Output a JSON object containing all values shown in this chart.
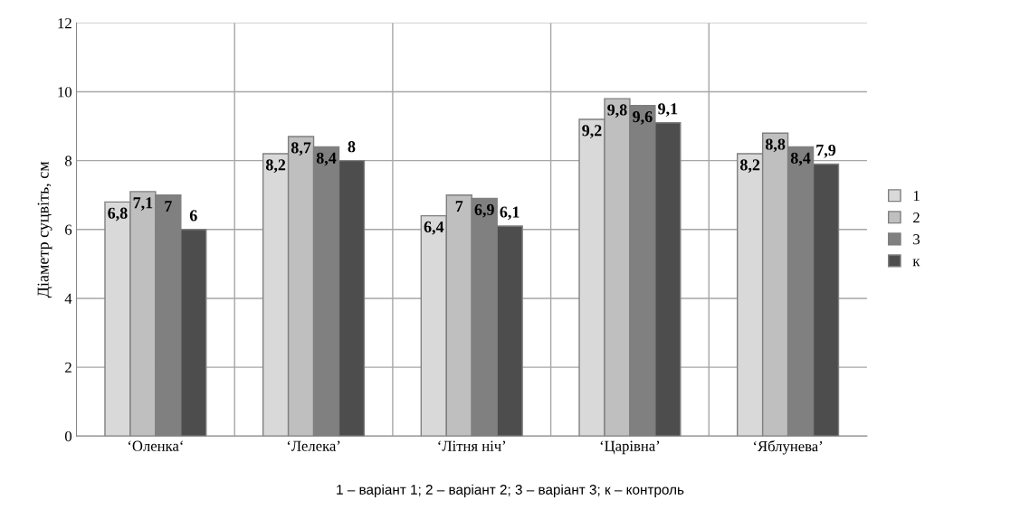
{
  "chart_data": {
    "type": "bar",
    "ylabel": "Діаметр суцвіть, см",
    "categories": [
      "‘Оленка‘",
      "‘Лелека’",
      "‘Літня ніч’",
      "‘Царівна’",
      "‘Яблунева’"
    ],
    "series": [
      {
        "name": "1",
        "color": "#d9d9d9",
        "values": [
          6.8,
          8.2,
          6.4,
          9.2,
          8.2
        ],
        "value_labels": [
          "6,8",
          "8,2",
          "6,4",
          "9,2",
          "8,2"
        ]
      },
      {
        "name": "2",
        "color": "#bfbfbf",
        "values": [
          7.1,
          8.7,
          7,
          9.8,
          8.8
        ],
        "value_labels": [
          "7,1",
          "8,7",
          "7",
          "9,8",
          "8,8"
        ]
      },
      {
        "name": "3",
        "color": "#808080",
        "values": [
          7,
          8.4,
          6.9,
          9.6,
          8.4
        ],
        "value_labels": [
          "7",
          "8,4",
          "6,9",
          "9,6",
          "8,4"
        ]
      },
      {
        "name": "к",
        "color": "#4d4d4d",
        "values": [
          6,
          8,
          6.1,
          9.1,
          7.9
        ],
        "value_labels": [
          "6",
          "8",
          "6,1",
          "9,1",
          "7,9"
        ]
      }
    ],
    "ylim": [
      0,
      12
    ],
    "yticks": [
      0,
      2,
      4,
      6,
      8,
      10,
      12
    ],
    "grid": true,
    "legend": "right",
    "annotations": [
      "1 – варіант 1; 2 – варіант 2; 3 – варіант 3; к – контроль"
    ]
  }
}
